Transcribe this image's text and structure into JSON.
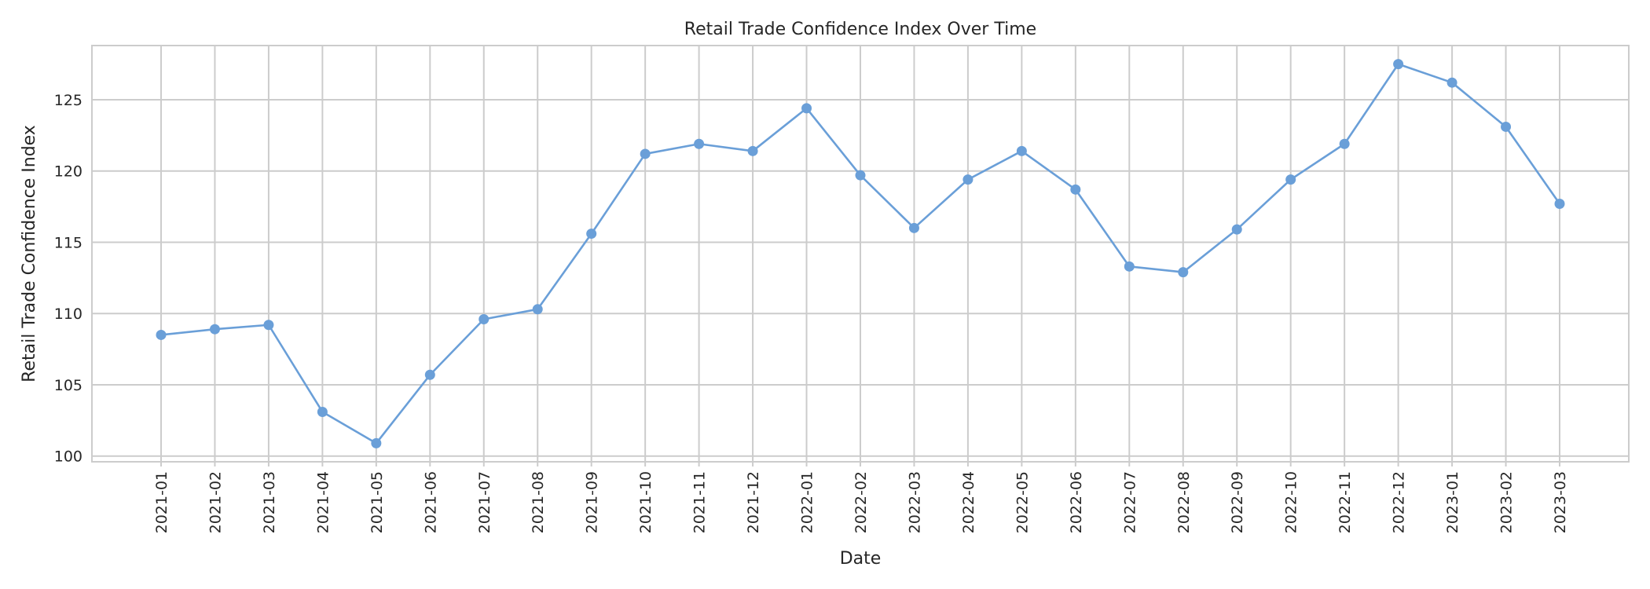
{
  "chart_data": {
    "type": "line",
    "title": "Retail Trade Confidence Index Over Time",
    "xlabel": "Date",
    "ylabel": "Retail Trade Confidence Index",
    "categories": [
      "2021-01",
      "2021-02",
      "2021-03",
      "2021-04",
      "2021-05",
      "2021-06",
      "2021-07",
      "2021-08",
      "2021-09",
      "2021-10",
      "2021-11",
      "2021-12",
      "2022-01",
      "2022-02",
      "2022-03",
      "2022-04",
      "2022-05",
      "2022-06",
      "2022-07",
      "2022-08",
      "2022-09",
      "2022-10",
      "2022-11",
      "2022-12",
      "2023-01",
      "2023-02",
      "2023-03"
    ],
    "series": [
      {
        "values": [
          108.5,
          108.9,
          109.2,
          103.1,
          100.9,
          105.7,
          109.6,
          110.3,
          115.6,
          121.2,
          121.9,
          121.4,
          124.4,
          119.7,
          116.0,
          119.4,
          121.4,
          118.7,
          113.3,
          112.9,
          115.9,
          119.4,
          121.9,
          127.5,
          126.2,
          123.1,
          117.7
        ],
        "color": "#6a9fd8"
      }
    ],
    "yticks": [
      100,
      105,
      110,
      115,
      120,
      125
    ],
    "ylim": [
      99.6,
      128.8
    ],
    "grid": true,
    "marker": "circle"
  }
}
